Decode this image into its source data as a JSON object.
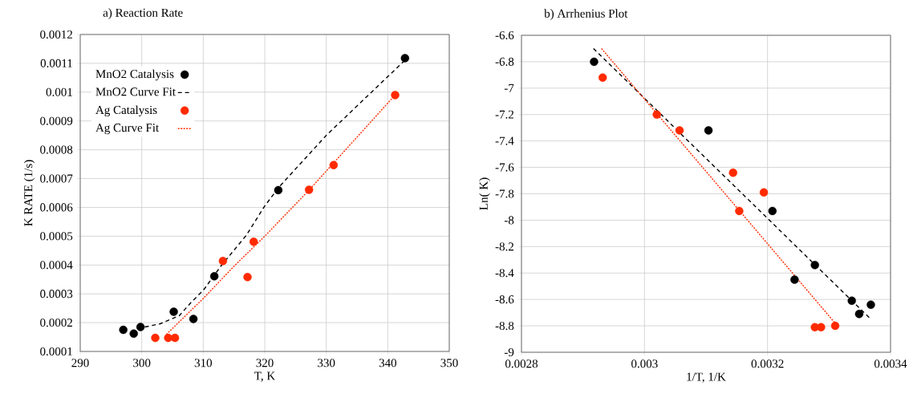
{
  "chart_data": [
    {
      "type": "scatter",
      "title": "a) Reaction Rate",
      "xlabel": "T, K",
      "ylabel": "K RATE (1/s)",
      "xlim": [
        290,
        350
      ],
      "xticks": [
        290,
        300,
        310,
        320,
        330,
        340,
        350
      ],
      "ylim": [
        0.0001,
        0.0012
      ],
      "yticks": [
        0.0001,
        0.0002,
        0.0003,
        0.0004,
        0.0005,
        0.0006,
        0.0007,
        0.0008,
        0.0009,
        0.001,
        0.0011,
        0.0012
      ],
      "grid": true,
      "legend": "top left",
      "series": [
        {
          "name": "MnO2 Catalysis",
          "type": "scatter",
          "marker": "circle",
          "color": "#000000",
          "x": [
            297.0,
            298.7,
            299.8,
            305.2,
            308.4,
            311.8,
            322.2,
            342.8
          ],
          "values": [
            0.000175,
            0.000162,
            0.000185,
            0.000238,
            0.000213,
            0.000361,
            0.00066,
            0.001118
          ]
        },
        {
          "name": "MnO2 Curve Fit",
          "type": "line",
          "line_style": "dashed",
          "color": "#000000",
          "x": [
            300.5,
            303,
            306.1,
            308,
            310,
            313,
            317,
            320,
            322.3,
            330,
            343
          ],
          "values": [
            0.000185,
            0.000196,
            0.000224,
            0.00027,
            0.000312,
            0.0004,
            0.000503,
            0.000605,
            0.00067,
            0.00085,
            0.001115
          ]
        },
        {
          "name": "Ag Catalysis",
          "type": "scatter",
          "marker": "circle",
          "color": "#ff2a00",
          "x": [
            302.2,
            304.3,
            305.4,
            313.2,
            317.2,
            318.2,
            327.2,
            331.2,
            341.2
          ],
          "values": [
            0.000147,
            0.000147,
            0.000147,
            0.000414,
            0.000358,
            0.000481,
            0.000661,
            0.000747,
            0.00099
          ]
        },
        {
          "name": "Ag Curve Fit",
          "type": "line",
          "line_style": "dotted",
          "color": "#ff2a00",
          "x": [
            304,
            310,
            315.2,
            320,
            327.2,
            341.2
          ],
          "values": [
            0.000159,
            0.000284,
            0.0004,
            0.0005,
            0.00066,
            0.00099
          ]
        }
      ]
    },
    {
      "type": "scatter",
      "title": "b) Arrhenius Plot",
      "xlabel": "1/T, 1/K",
      "ylabel": "Ln( K)",
      "xlim": [
        0.0028,
        0.0034
      ],
      "xticks": [
        0.0028,
        0.003,
        0.0032,
        0.0034
      ],
      "ylim": [
        -9,
        -6.6
      ],
      "yticks": [
        -9,
        -8.8,
        -8.6,
        -8.4,
        -8.2,
        -8,
        -7.8,
        -7.6,
        -7.4,
        -7.2,
        -7,
        -6.8,
        -6.6
      ],
      "grid": true,
      "series": [
        {
          "type": "scatter",
          "marker": "circle",
          "color": "#000000",
          "x": [
            0.002918,
            0.003104,
            0.003208,
            0.003244,
            0.003277,
            0.003337,
            0.003349,
            0.003368
          ],
          "values": [
            -6.8,
            -7.32,
            -7.93,
            -8.45,
            -8.34,
            -8.61,
            -8.71,
            -8.64
          ]
        },
        {
          "type": "line",
          "line_style": "dashed",
          "color": "#000000",
          "x": [
            0.002917,
            0.003368
          ],
          "values": [
            -6.7,
            -8.75
          ]
        },
        {
          "type": "scatter",
          "marker": "circle",
          "color": "#ff2a00",
          "x": [
            0.002932,
            0.00302,
            0.003057,
            0.003144,
            0.003154,
            0.003194,
            0.003277,
            0.003287,
            0.00331
          ],
          "values": [
            -6.92,
            -7.2,
            -7.32,
            -7.64,
            -7.93,
            -7.79,
            -8.81,
            -8.81,
            -8.8
          ]
        },
        {
          "type": "line",
          "line_style": "dotted",
          "color": "#ff2a00",
          "x": [
            0.00293,
            0.00331
          ],
          "values": [
            -6.7,
            -8.78
          ]
        }
      ]
    }
  ]
}
